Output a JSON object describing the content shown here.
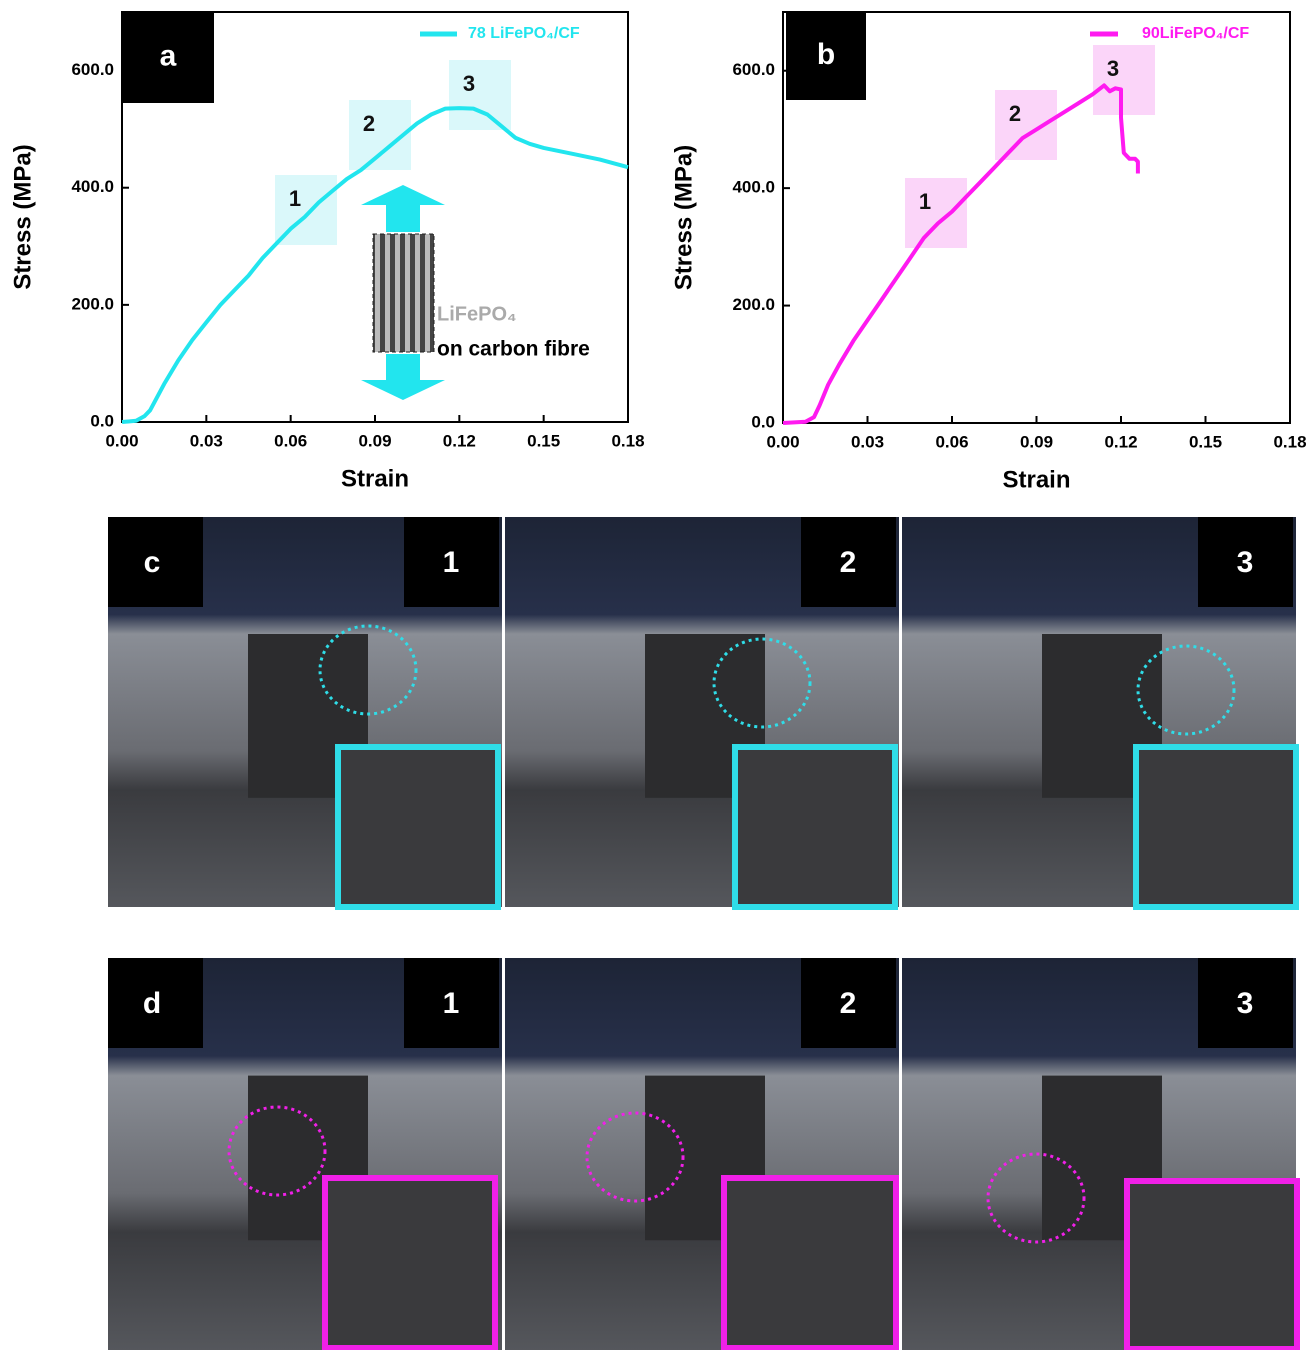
{
  "chart_data": [
    {
      "type": "line",
      "panel": "a",
      "xlabel": "Strain",
      "ylabel": "Stress (MPa)",
      "xlim": [
        0,
        0.18
      ],
      "ylim": [
        0,
        700
      ],
      "xticks": [
        {
          "value": 0,
          "label": "0.00"
        },
        {
          "value": 0.03,
          "label": "0.03"
        },
        {
          "value": 0.06,
          "label": "0.06"
        },
        {
          "value": 0.09,
          "label": "0.09"
        },
        {
          "value": 0.12,
          "label": "0.12"
        },
        {
          "value": 0.15,
          "label": "0.15"
        },
        {
          "value": 0.18,
          "label": "0.18"
        }
      ],
      "yticks": [
        {
          "value": 0,
          "label": "0.0"
        },
        {
          "value": 200,
          "label": "200.0"
        },
        {
          "value": 400,
          "label": "400.0"
        },
        {
          "value": 600,
          "label": "600.0"
        }
      ],
      "x": [
        0,
        0.005,
        0.008,
        0.01,
        0.015,
        0.02,
        0.025,
        0.03,
        0.035,
        0.04,
        0.045,
        0.05,
        0.055,
        0.06,
        0.065,
        0.07,
        0.075,
        0.08,
        0.085,
        0.09,
        0.095,
        0.1,
        0.105,
        0.11,
        0.115,
        0.12,
        0.125,
        0.13,
        0.135,
        0.14,
        0.145,
        0.15,
        0.16,
        0.17,
        0.18
      ],
      "series": [
        {
          "name": "78 LiFePO₄/CF",
          "color": "#22e5ee",
          "values": [
            0,
            2,
            10,
            20,
            65,
            105,
            140,
            170,
            200,
            225,
            250,
            280,
            305,
            330,
            350,
            375,
            395,
            415,
            430,
            450,
            470,
            490,
            510,
            525,
            535,
            536,
            535,
            525,
            505,
            485,
            475,
            468,
            458,
            448,
            435
          ]
        }
      ],
      "annotations": [
        "1",
        "2",
        "3"
      ],
      "inset": [
        "LiFePO₄",
        "on carbon fibre"
      ]
    },
    {
      "type": "line",
      "panel": "b",
      "xlabel": "Strain",
      "ylabel": "Stress (MPa)",
      "xlim": [
        0,
        0.18
      ],
      "ylim": [
        0,
        700
      ],
      "xticks": [
        {
          "value": 0,
          "label": "0.00"
        },
        {
          "value": 0.03,
          "label": "0.03"
        },
        {
          "value": 0.06,
          "label": "0.06"
        },
        {
          "value": 0.09,
          "label": "0.09"
        },
        {
          "value": 0.12,
          "label": "0.12"
        },
        {
          "value": 0.15,
          "label": "0.15"
        },
        {
          "value": 0.18,
          "label": "0.18"
        }
      ],
      "yticks": [
        {
          "value": 0,
          "label": "0.0"
        },
        {
          "value": 200,
          "label": "200.0"
        },
        {
          "value": 400,
          "label": "400.0"
        },
        {
          "value": 600,
          "label": "600.0"
        }
      ],
      "x": [
        0,
        0.008,
        0.011,
        0.013,
        0.016,
        0.02,
        0.025,
        0.03,
        0.035,
        0.04,
        0.045,
        0.05,
        0.055,
        0.06,
        0.065,
        0.07,
        0.075,
        0.08,
        0.085,
        0.09,
        0.095,
        0.1,
        0.105,
        0.11,
        0.114,
        0.116,
        0.118,
        0.12,
        0.12,
        0.121,
        0.123,
        0.125,
        0.126,
        0.126
      ],
      "series": [
        {
          "name": "90LiFePO₄/CF",
          "color": "#ff1af0",
          "values": [
            0,
            2,
            10,
            30,
            65,
            100,
            140,
            175,
            210,
            245,
            280,
            315,
            340,
            360,
            385,
            410,
            435,
            460,
            485,
            500,
            515,
            530,
            545,
            560,
            575,
            565,
            570,
            568,
            520,
            460,
            450,
            450,
            445,
            425
          ]
        }
      ],
      "annotations": [
        "1",
        "2",
        "3"
      ]
    }
  ],
  "photo_panels": [
    {
      "label": "c",
      "frames": [
        "1",
        "2",
        "3"
      ]
    },
    {
      "label": "d",
      "frames": [
        "1",
        "2",
        "3"
      ]
    }
  ]
}
